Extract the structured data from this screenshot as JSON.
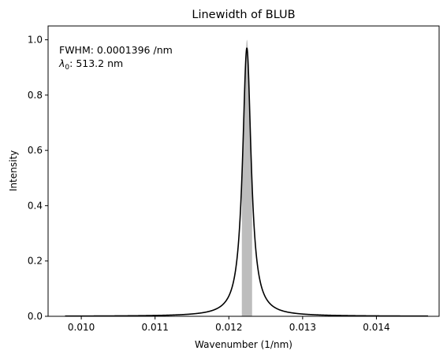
{
  "chart_data": {
    "type": "line",
    "title": "Linewidth of BLUB",
    "xlabel": "Wavenumber (1/nm)",
    "ylabel": "Intensity",
    "xlim": [
      0.00955,
      0.01485
    ],
    "ylim": [
      0.0,
      1.05
    ],
    "x_ticks": [
      0.01,
      0.011,
      0.012,
      0.013,
      0.014
    ],
    "x_tick_labels": [
      "0.010",
      "0.011",
      "0.012",
      "0.013",
      "0.014"
    ],
    "y_ticks": [
      0.0,
      0.2,
      0.4,
      0.6,
      0.8,
      1.0
    ],
    "y_tick_labels": [
      "0.0",
      "0.2",
      "0.4",
      "0.6",
      "0.8",
      "1.0"
    ],
    "grid": false,
    "annotations": {
      "fwhm": "FWHM: 0.0001396 /nm",
      "lambda_symbol": "λ",
      "lambda_sub": "0",
      "lambda_value": ": 513.2 nm"
    },
    "series": [
      {
        "style": "line",
        "color": "#000000",
        "x_range": [
          0.00978,
          0.0147
        ],
        "center": 0.012244,
        "fwhm": 0.0001396,
        "peak": 0.97
      }
    ],
    "shaded_region": {
      "color": "#bdbdbd",
      "x_range": [
        0.012176,
        0.012315
      ],
      "peak": 1.0
    }
  }
}
